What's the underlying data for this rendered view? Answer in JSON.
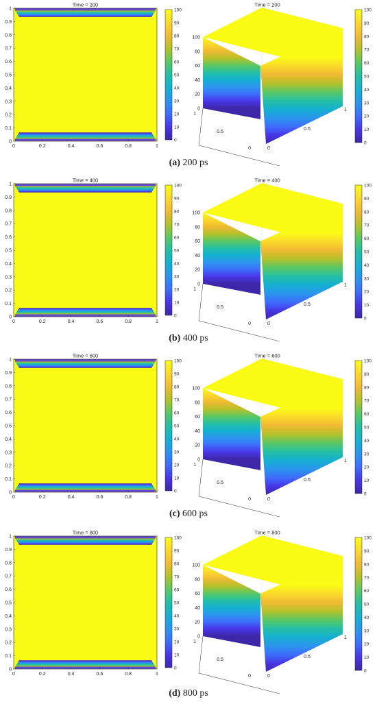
{
  "colors": {
    "colormap": [
      "#3e26a8",
      "#4836e6",
      "#3d6efc",
      "#2b95ed",
      "#15b0d0",
      "#24bfa5",
      "#5ac864",
      "#b3c12a",
      "#f0ba34",
      "#fad82b",
      "#f9fb15"
    ],
    "axis": "#262626",
    "grid": "#dcdcdc"
  },
  "figure": {
    "panels": [
      {
        "label": "(a)",
        "letter": "a",
        "time_text": "200 ps",
        "title": "Time = 200"
      },
      {
        "label": "(b)",
        "letter": "b",
        "time_text": "400 ps",
        "title": "Time = 400"
      },
      {
        "label": "(c)",
        "letter": "c",
        "time_text": "600 ps",
        "title": "Time = 600"
      },
      {
        "label": "(d)",
        "letter": "d",
        "time_text": "800 ps",
        "title": "Time = 800"
      }
    ]
  },
  "chart_data": [
    {
      "type": "heatmap",
      "title": "Time = 200",
      "view": "2d",
      "xlim": [
        0,
        1
      ],
      "ylim": [
        0,
        1
      ],
      "x_ticks": [
        "0",
        "0.2",
        "0.4",
        "0.6",
        "0.8",
        "1"
      ],
      "y_ticks": [
        "0",
        "0.1",
        "0.2",
        "0.3",
        "0.4",
        "0.5",
        "0.6",
        "0.7",
        "0.8",
        "0.9",
        "1"
      ],
      "colorbar_ticks": [
        "0",
        "10",
        "20",
        "30",
        "40",
        "50",
        "60",
        "70",
        "80",
        "90",
        "100"
      ],
      "clim": [
        0,
        100
      ],
      "interior_value": 100,
      "boundary_value": 0,
      "boundary_width": 0.03
    },
    {
      "type": "heatmap",
      "title": "Time = 200",
      "view": "3d-surface",
      "zlim": [
        0,
        100
      ],
      "x_ticks": [
        "0",
        "0.5",
        "1"
      ],
      "y_ticks": [
        "0",
        "0.5",
        "1"
      ],
      "z_ticks": [
        "0",
        "20",
        "40",
        "60",
        "80",
        "100"
      ],
      "colorbar_ticks": [
        "0",
        "10",
        "20",
        "30",
        "40",
        "50",
        "60",
        "70",
        "80",
        "90",
        "100"
      ],
      "clim": [
        0,
        100
      ],
      "interior_value": 100,
      "boundary_value": 0
    },
    {
      "type": "heatmap",
      "title": "Time = 400",
      "view": "2d",
      "xlim": [
        0,
        1
      ],
      "ylim": [
        0,
        1
      ],
      "x_ticks": [
        "0",
        "0.2",
        "0.4",
        "0.6",
        "0.8",
        "1"
      ],
      "y_ticks": [
        "0",
        "0.1",
        "0.2",
        "0.3",
        "0.4",
        "0.5",
        "0.6",
        "0.7",
        "0.8",
        "0.9",
        "1"
      ],
      "colorbar_ticks": [
        "0",
        "10",
        "20",
        "30",
        "40",
        "50",
        "60",
        "70",
        "80",
        "90",
        "100"
      ],
      "clim": [
        0,
        100
      ],
      "interior_value": 100,
      "boundary_value": 0,
      "boundary_width": 0.03
    },
    {
      "type": "heatmap",
      "title": "Time = 400",
      "view": "3d-surface",
      "zlim": [
        0,
        100
      ],
      "x_ticks": [
        "0",
        "0.5",
        "1"
      ],
      "y_ticks": [
        "0",
        "0.5",
        "1"
      ],
      "z_ticks": [
        "0",
        "20",
        "40",
        "60",
        "80",
        "100"
      ],
      "colorbar_ticks": [
        "0",
        "10",
        "20",
        "30",
        "40",
        "50",
        "60",
        "70",
        "80",
        "90",
        "100"
      ],
      "clim": [
        0,
        100
      ],
      "interior_value": 100,
      "boundary_value": 0
    },
    {
      "type": "heatmap",
      "title": "Time = 600",
      "view": "2d",
      "xlim": [
        0,
        1
      ],
      "ylim": [
        0,
        1
      ],
      "x_ticks": [
        "0",
        "0.2",
        "0.4",
        "0.6",
        "0.8",
        "1"
      ],
      "y_ticks": [
        "0",
        "0.1",
        "0.2",
        "0.3",
        "0.4",
        "0.5",
        "0.6",
        "0.7",
        "0.8",
        "0.9",
        "1"
      ],
      "colorbar_ticks": [
        "0",
        "10",
        "20",
        "30",
        "40",
        "50",
        "60",
        "70",
        "80",
        "90",
        "100"
      ],
      "clim": [
        0,
        100
      ],
      "interior_value": 100,
      "boundary_value": 0,
      "boundary_width": 0.03
    },
    {
      "type": "heatmap",
      "title": "Time = 600",
      "view": "3d-surface",
      "zlim": [
        0,
        100
      ],
      "x_ticks": [
        "0",
        "0.5",
        "1"
      ],
      "y_ticks": [
        "0",
        "0.5",
        "1"
      ],
      "z_ticks": [
        "0",
        "20",
        "40",
        "60",
        "80",
        "100"
      ],
      "colorbar_ticks": [
        "0",
        "10",
        "20",
        "30",
        "40",
        "50",
        "60",
        "70",
        "80",
        "90",
        "100"
      ],
      "clim": [
        0,
        100
      ],
      "interior_value": 100,
      "boundary_value": 0
    },
    {
      "type": "heatmap",
      "title": "Time = 800",
      "view": "2d",
      "xlim": [
        0,
        1
      ],
      "ylim": [
        0,
        1
      ],
      "x_ticks": [
        "0",
        "0.2",
        "0.4",
        "0.6",
        "0.8",
        "1"
      ],
      "y_ticks": [
        "0",
        "0.1",
        "0.2",
        "0.3",
        "0.4",
        "0.5",
        "0.6",
        "0.7",
        "0.8",
        "0.9",
        "1"
      ],
      "colorbar_ticks": [
        "0",
        "10",
        "20",
        "30",
        "40",
        "50",
        "60",
        "70",
        "80",
        "90",
        "100"
      ],
      "clim": [
        0,
        100
      ],
      "interior_value": 100,
      "boundary_value": 0,
      "boundary_width": 0.03
    },
    {
      "type": "heatmap",
      "title": "Time = 800",
      "view": "3d-surface",
      "zlim": [
        0,
        100
      ],
      "x_ticks": [
        "0",
        "0.5",
        "1"
      ],
      "y_ticks": [
        "0",
        "0.5",
        "1"
      ],
      "z_ticks": [
        "0",
        "20",
        "40",
        "60",
        "80",
        "100"
      ],
      "colorbar_ticks": [
        "0",
        "10",
        "20",
        "30",
        "40",
        "50",
        "60",
        "70",
        "80",
        "90",
        "100"
      ],
      "clim": [
        0,
        100
      ],
      "interior_value": 100,
      "boundary_value": 0
    }
  ]
}
